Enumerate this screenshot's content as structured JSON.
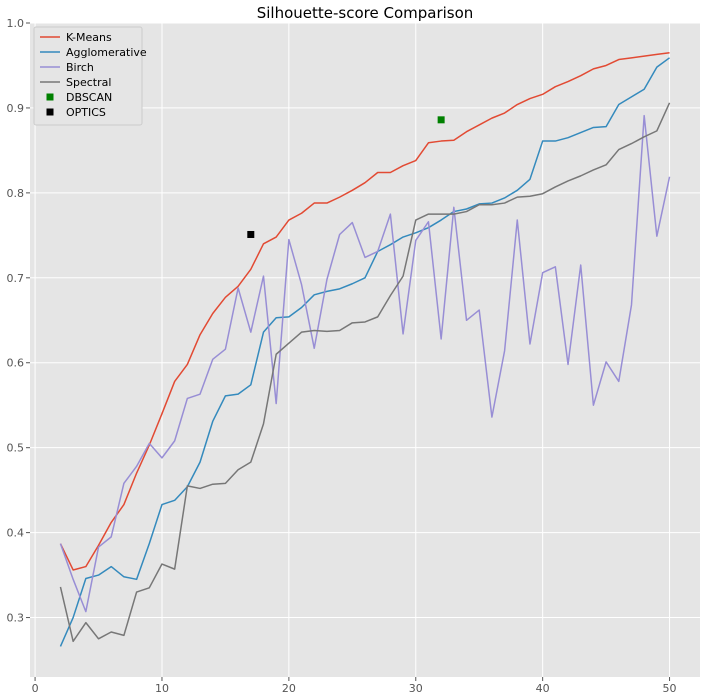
{
  "chart_data": {
    "type": "line",
    "title": "Silhouette-score Comparison",
    "xlabel": "",
    "ylabel": "",
    "xlim": [
      -0.4,
      52.4
    ],
    "ylim": [
      0.23,
      1.0
    ],
    "xticks": [
      0,
      10,
      20,
      30,
      40,
      50
    ],
    "yticks": [
      0.3,
      0.4,
      0.5,
      0.6,
      0.7,
      0.8,
      0.9,
      1.0
    ],
    "xtick_labels": [
      "0",
      "10",
      "20",
      "30",
      "40",
      "50"
    ],
    "ytick_labels": [
      "0.3",
      "0.4",
      "0.5",
      "0.6",
      "0.7",
      "0.8",
      "0.9",
      "1.0"
    ],
    "grid": true,
    "legend_position": "top-left",
    "x": [
      2,
      3,
      4,
      5,
      6,
      7,
      8,
      9,
      10,
      11,
      12,
      13,
      14,
      15,
      16,
      17,
      18,
      19,
      20,
      21,
      22,
      23,
      24,
      25,
      26,
      27,
      28,
      29,
      30,
      31,
      32,
      33,
      34,
      35,
      36,
      37,
      38,
      39,
      40,
      41,
      42,
      43,
      44,
      45,
      46,
      47,
      48,
      49,
      50
    ],
    "series": [
      {
        "name": "K-Means",
        "color": "#e24a33",
        "values": [
          0.387,
          0.356,
          0.36,
          0.385,
          0.412,
          0.433,
          0.47,
          0.503,
          0.54,
          0.578,
          0.598,
          0.633,
          0.658,
          0.677,
          0.69,
          0.71,
          0.74,
          0.748,
          0.768,
          0.776,
          0.788,
          0.788,
          0.795,
          0.803,
          0.812,
          0.824,
          0.824,
          0.832,
          0.838,
          0.859,
          0.861,
          0.862,
          0.872,
          0.88,
          0.888,
          0.894,
          0.904,
          0.911,
          0.916,
          0.925,
          0.931,
          0.938,
          0.946,
          0.95,
          0.957,
          0.959,
          0.961,
          0.963,
          0.965
        ]
      },
      {
        "name": "Agglomerative",
        "color": "#348abd",
        "values": [
          0.266,
          0.3,
          0.346,
          0.35,
          0.36,
          0.348,
          0.345,
          0.387,
          0.433,
          0.438,
          0.454,
          0.483,
          0.531,
          0.561,
          0.563,
          0.574,
          0.636,
          0.653,
          0.654,
          0.665,
          0.68,
          0.684,
          0.687,
          0.693,
          0.7,
          0.731,
          0.739,
          0.748,
          0.753,
          0.759,
          0.768,
          0.778,
          0.781,
          0.787,
          0.788,
          0.794,
          0.803,
          0.816,
          0.861,
          0.861,
          0.865,
          0.871,
          0.877,
          0.878,
          0.904,
          0.913,
          0.922,
          0.948,
          0.959
        ]
      },
      {
        "name": "Birch",
        "color": "#988ed5",
        "values": [
          0.387,
          0.345,
          0.307,
          0.383,
          0.395,
          0.458,
          0.478,
          0.505,
          0.488,
          0.508,
          0.558,
          0.563,
          0.604,
          0.616,
          0.688,
          0.636,
          0.702,
          0.552,
          0.745,
          0.692,
          0.617,
          0.698,
          0.751,
          0.765,
          0.724,
          0.731,
          0.775,
          0.634,
          0.744,
          0.766,
          0.628,
          0.783,
          0.65,
          0.662,
          0.536,
          0.614,
          0.768,
          0.622,
          0.706,
          0.713,
          0.598,
          0.715,
          0.55,
          0.601,
          0.578,
          0.668,
          0.891,
          0.749,
          0.819
        ]
      },
      {
        "name": "Spectral",
        "color": "#777777",
        "values": [
          0.336,
          0.272,
          0.294,
          0.275,
          0.283,
          0.279,
          0.33,
          0.335,
          0.363,
          0.357,
          0.455,
          0.452,
          0.457,
          0.458,
          0.474,
          0.483,
          0.528,
          0.61,
          0.623,
          0.636,
          0.638,
          0.637,
          0.638,
          0.647,
          0.648,
          0.654,
          0.679,
          0.702,
          0.768,
          0.775,
          0.775,
          0.775,
          0.778,
          0.786,
          0.786,
          0.788,
          0.795,
          0.796,
          0.799,
          0.807,
          0.814,
          0.82,
          0.827,
          0.833,
          0.851,
          0.858,
          0.866,
          0.873,
          0.906
        ]
      }
    ],
    "points": [
      {
        "name": "DBSCAN",
        "color": "#008000",
        "x": 32,
        "y": 0.886
      },
      {
        "name": "OPTICS",
        "color": "#000000",
        "x": 17,
        "y": 0.751
      }
    ]
  }
}
